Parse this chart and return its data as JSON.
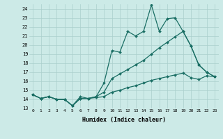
{
  "title": "",
  "xlabel": "Humidex (Indice chaleur)",
  "xlim": [
    -0.5,
    23.5
  ],
  "ylim": [
    13.0,
    24.5
  ],
  "yticks": [
    13,
    14,
    15,
    16,
    17,
    18,
    19,
    20,
    21,
    22,
    23,
    24
  ],
  "xticks": [
    0,
    1,
    2,
    3,
    4,
    5,
    6,
    7,
    8,
    9,
    10,
    11,
    12,
    13,
    14,
    15,
    16,
    17,
    18,
    19,
    20,
    21,
    22,
    23
  ],
  "background_color": "#cceae7",
  "grid_color": "#aacfcc",
  "line_color": "#1a6e64",
  "series1_y": [
    14.5,
    14.1,
    14.3,
    14.0,
    14.0,
    13.3,
    14.3,
    14.1,
    14.3,
    15.8,
    19.4,
    19.2,
    21.5,
    21.0,
    21.5,
    24.4,
    21.5,
    22.9,
    23.0,
    21.5,
    19.9,
    17.8,
    17.0,
    16.5
  ],
  "series2_y": [
    14.5,
    14.1,
    14.3,
    14.0,
    14.0,
    13.3,
    14.1,
    14.1,
    14.3,
    14.8,
    16.3,
    16.8,
    17.3,
    17.8,
    18.3,
    19.0,
    19.7,
    20.3,
    20.9,
    21.5,
    19.9,
    17.8,
    17.0,
    16.5
  ],
  "series3_y": [
    14.5,
    14.1,
    14.3,
    14.0,
    14.0,
    13.3,
    14.1,
    14.1,
    14.2,
    14.3,
    14.8,
    15.0,
    15.3,
    15.5,
    15.8,
    16.1,
    16.3,
    16.5,
    16.7,
    16.9,
    16.4,
    16.2,
    16.6,
    16.5
  ]
}
